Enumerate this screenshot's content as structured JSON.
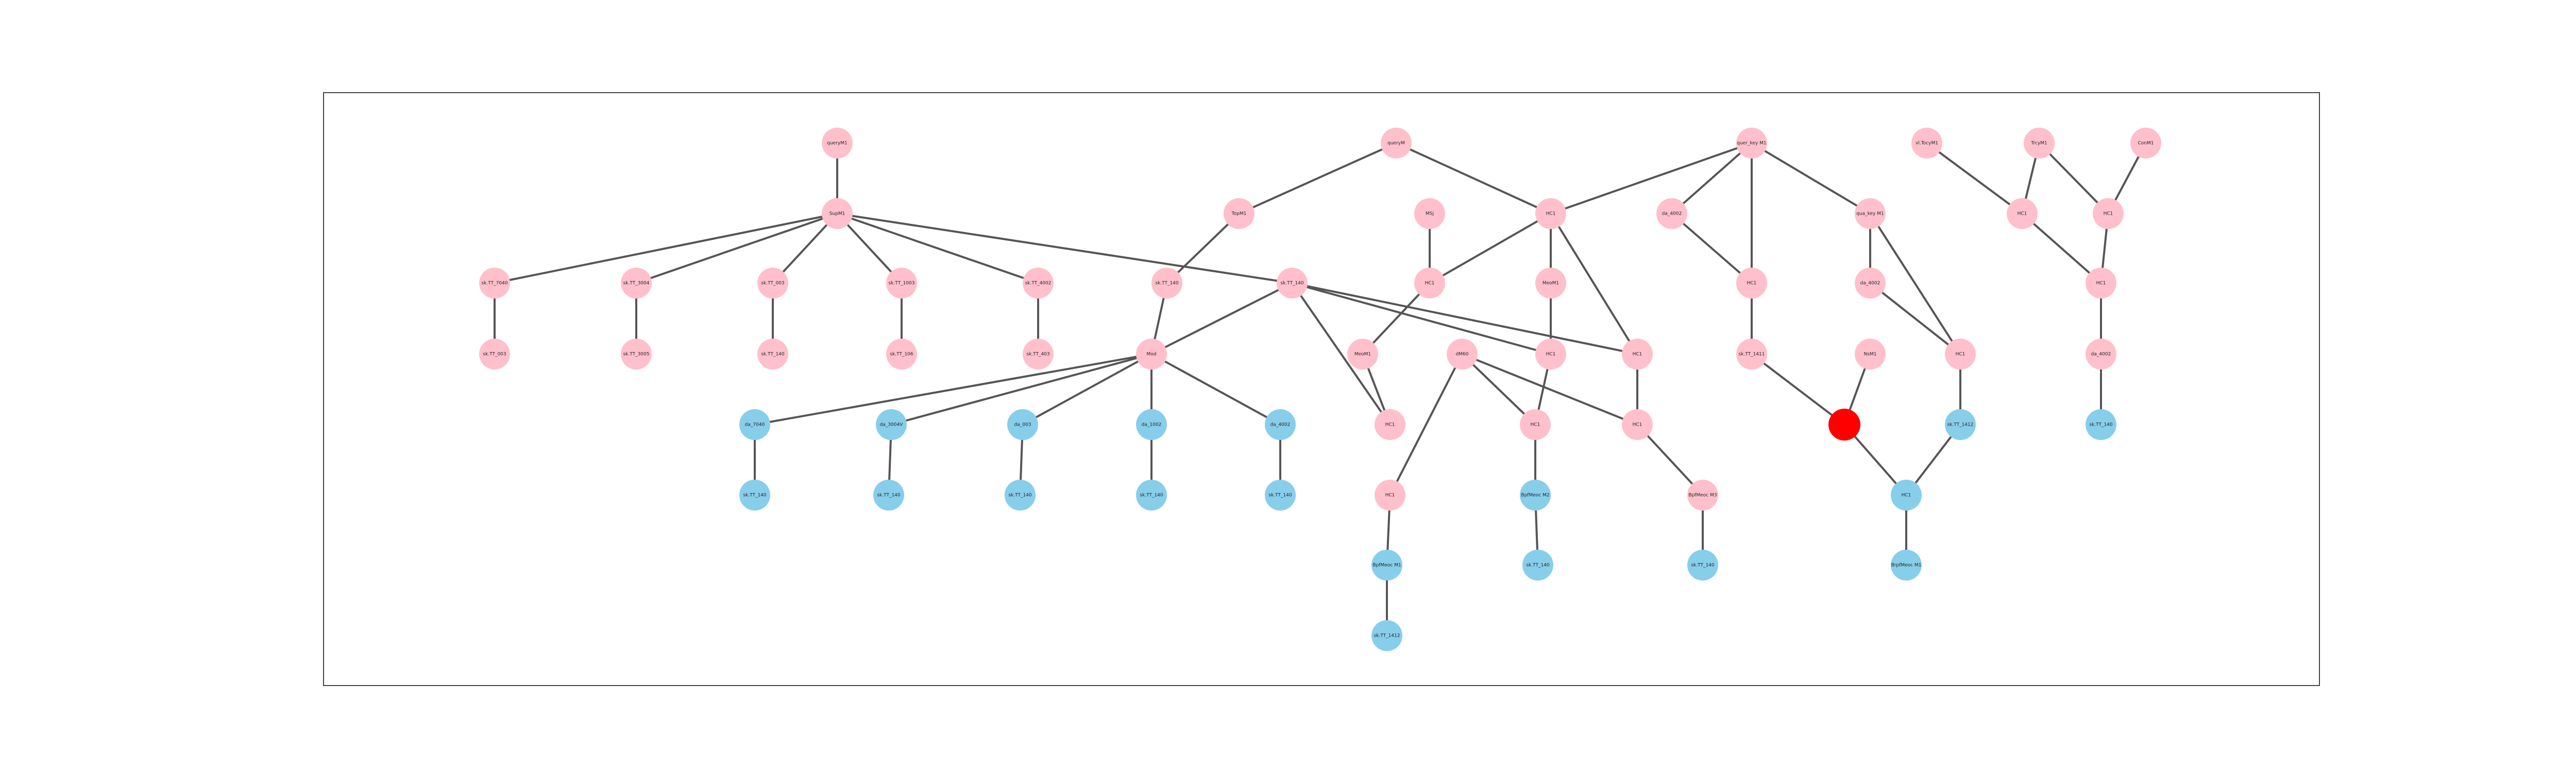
{
  "colors": {
    "pink": "#ffc0cb",
    "blue": "#87ceeb",
    "red": "#ff0000",
    "edge": "#555555"
  },
  "nodes": [
    {
      "id": "n1",
      "label": "queryM1",
      "color": "pink"
    },
    {
      "id": "n2",
      "label": "SupM1",
      "color": "pink"
    },
    {
      "id": "n3",
      "label": "sk.TT_7040",
      "color": "pink"
    },
    {
      "id": "n4",
      "label": "sk.TT_3004",
      "color": "pink"
    },
    {
      "id": "n5",
      "label": "sk.TT_003",
      "color": "pink"
    },
    {
      "id": "n6",
      "label": "sk.TT_1003",
      "color": "pink"
    },
    {
      "id": "n7",
      "label": "sk.TT_4002",
      "color": "pink"
    },
    {
      "id": "n8",
      "label": "sk.TT_003",
      "color": "pink"
    },
    {
      "id": "n9",
      "label": "sk.TT_3005",
      "color": "pink"
    },
    {
      "id": "n10",
      "label": "sk.TT_140",
      "color": "pink"
    },
    {
      "id": "n11",
      "label": "sk.TT_106",
      "color": "pink"
    },
    {
      "id": "n12",
      "label": "sk.TT_403",
      "color": "pink"
    },
    {
      "id": "n13",
      "label": "TopM1",
      "color": "pink"
    },
    {
      "id": "n14",
      "label": "sk.TT_140",
      "color": "pink"
    },
    {
      "id": "n15",
      "label": "sk.TT_140",
      "color": "pink"
    },
    {
      "id": "n16",
      "label": "Mod",
      "color": "pink"
    },
    {
      "id": "n17",
      "label": "da_7040",
      "color": "blue"
    },
    {
      "id": "n18",
      "label": "da_3004V",
      "color": "blue"
    },
    {
      "id": "n19",
      "label": "da_003",
      "color": "blue"
    },
    {
      "id": "n20",
      "label": "da_1002",
      "color": "blue"
    },
    {
      "id": "n21",
      "label": "da_4002",
      "color": "blue"
    },
    {
      "id": "n22",
      "label": "sk.TT_140",
      "color": "blue"
    },
    {
      "id": "n23",
      "label": "sk.TT_140",
      "color": "blue"
    },
    {
      "id": "n24",
      "label": "sk.TT_140",
      "color": "blue"
    },
    {
      "id": "n25",
      "label": "sk.TT_140",
      "color": "blue"
    },
    {
      "id": "n26",
      "label": "sk.TT_140",
      "color": "blue"
    },
    {
      "id": "n27",
      "label": "queryM",
      "color": "pink"
    },
    {
      "id": "n28",
      "label": "MSj",
      "color": "pink"
    },
    {
      "id": "n29",
      "label": "HC1",
      "color": "pink"
    },
    {
      "id": "n30",
      "label": "HC1",
      "color": "pink"
    },
    {
      "id": "n31",
      "label": "MeoM1",
      "color": "pink"
    },
    {
      "id": "n32",
      "label": "MeoM1",
      "color": "pink"
    },
    {
      "id": "n33",
      "label": "dM60",
      "color": "pink"
    },
    {
      "id": "n34",
      "label": "HC1",
      "color": "pink"
    },
    {
      "id": "n35",
      "label": "HC1",
      "color": "pink"
    },
    {
      "id": "n36",
      "label": "HC1",
      "color": "pink"
    },
    {
      "id": "n37",
      "label": "HC1",
      "color": "pink"
    },
    {
      "id": "n38",
      "label": "HC1",
      "color": "pink"
    },
    {
      "id": "n39",
      "label": "HC1",
      "color": "pink"
    },
    {
      "id": "n40",
      "label": "BpfMeoc M1",
      "color": "blue"
    },
    {
      "id": "n41",
      "label": "BpfMeoc M2",
      "color": "blue"
    },
    {
      "id": "n42",
      "label": "BpfMeoc M3",
      "color": "pink"
    },
    {
      "id": "n43",
      "label": "sk.TT_1412",
      "color": "blue"
    },
    {
      "id": "n44",
      "label": "sk.TT_140",
      "color": "blue"
    },
    {
      "id": "n45",
      "label": "sk.TT_140",
      "color": "blue"
    },
    {
      "id": "n46",
      "label": "quer_key M1",
      "color": "pink"
    },
    {
      "id": "n47",
      "label": "da_4002",
      "color": "pink"
    },
    {
      "id": "n48",
      "label": "HC1",
      "color": "pink"
    },
    {
      "id": "n49",
      "label": "qua_key M1",
      "color": "pink"
    },
    {
      "id": "n50",
      "label": "sk.TT_1411",
      "color": "pink"
    },
    {
      "id": "n51",
      "label": "da_4002",
      "color": "pink"
    },
    {
      "id": "n52",
      "label": "HC1",
      "color": "pink"
    },
    {
      "id": "n53",
      "label": "NsM1",
      "color": "pink"
    },
    {
      "id": "n54",
      "label": "",
      "color": "red"
    },
    {
      "id": "n55",
      "label": "sk.TT_1412",
      "color": "blue"
    },
    {
      "id": "n56",
      "label": "HC1",
      "color": "blue"
    },
    {
      "id": "n57",
      "label": "BrpfMeoc M1",
      "color": "blue"
    },
    {
      "id": "n58",
      "label": "vl.TocyM1",
      "color": "pink"
    },
    {
      "id": "n59",
      "label": "TrcyM1",
      "color": "pink"
    },
    {
      "id": "n60",
      "label": "ConM1",
      "color": "pink"
    },
    {
      "id": "n61",
      "label": "HC1",
      "color": "pink"
    },
    {
      "id": "n62",
      "label": "HC1",
      "color": "pink"
    },
    {
      "id": "n63",
      "label": "HC1",
      "color": "pink"
    },
    {
      "id": "n64",
      "label": "da_4002",
      "color": "pink"
    },
    {
      "id": "n65",
      "label": "sk.TT_140",
      "color": "blue"
    }
  ],
  "edges": [
    [
      "n1",
      "n2"
    ],
    [
      "n2",
      "n3"
    ],
    [
      "n2",
      "n4"
    ],
    [
      "n2",
      "n5"
    ],
    [
      "n2",
      "n6"
    ],
    [
      "n2",
      "n7"
    ],
    [
      "n2",
      "n14"
    ],
    [
      "n3",
      "n8"
    ],
    [
      "n4",
      "n9"
    ],
    [
      "n5",
      "n10"
    ],
    [
      "n6",
      "n11"
    ],
    [
      "n7",
      "n12"
    ],
    [
      "n27",
      "n13"
    ],
    [
      "n27",
      "n29"
    ],
    [
      "n13",
      "n15"
    ],
    [
      "n15",
      "n16"
    ],
    [
      "n14",
      "n16"
    ],
    [
      "n14",
      "n34"
    ],
    [
      "n14",
      "n35"
    ],
    [
      "n14",
      "n36"
    ],
    [
      "n16",
      "n17"
    ],
    [
      "n16",
      "n18"
    ],
    [
      "n16",
      "n19"
    ],
    [
      "n16",
      "n20"
    ],
    [
      "n16",
      "n21"
    ],
    [
      "n17",
      "n22"
    ],
    [
      "n18",
      "n23"
    ],
    [
      "n19",
      "n24"
    ],
    [
      "n20",
      "n25"
    ],
    [
      "n21",
      "n26"
    ],
    [
      "n28",
      "n30"
    ],
    [
      "n29",
      "n30"
    ],
    [
      "n29",
      "n31"
    ],
    [
      "n29",
      "n36"
    ],
    [
      "n31",
      "n35"
    ],
    [
      "n30",
      "n32"
    ],
    [
      "n32",
      "n34"
    ],
    [
      "n33",
      "n38"
    ],
    [
      "n33",
      "n39"
    ],
    [
      "n33",
      "n37"
    ],
    [
      "n35",
      "n38"
    ],
    [
      "n36",
      "n39"
    ],
    [
      "n39",
      "n42"
    ],
    [
      "n42",
      "n45"
    ],
    [
      "n37",
      "n40"
    ],
    [
      "n40",
      "n43"
    ],
    [
      "n38",
      "n41"
    ],
    [
      "n41",
      "n44"
    ],
    [
      "n46",
      "n29"
    ],
    [
      "n46",
      "n47"
    ],
    [
      "n46",
      "n48"
    ],
    [
      "n46",
      "n49"
    ],
    [
      "n47",
      "n48"
    ],
    [
      "n48",
      "n50"
    ],
    [
      "n49",
      "n51"
    ],
    [
      "n49",
      "n52"
    ],
    [
      "n51",
      "n52"
    ],
    [
      "n50",
      "n54"
    ],
    [
      "n53",
      "n54"
    ],
    [
      "n54",
      "n56"
    ],
    [
      "n52",
      "n55"
    ],
    [
      "n55",
      "n56"
    ],
    [
      "n56",
      "n57"
    ],
    [
      "n58",
      "n61"
    ],
    [
      "n59",
      "n61"
    ],
    [
      "n59",
      "n62"
    ],
    [
      "n60",
      "n62"
    ],
    [
      "n61",
      "n63"
    ],
    [
      "n62",
      "n63"
    ],
    [
      "n63",
      "n64"
    ],
    [
      "n64",
      "n65"
    ]
  ]
}
